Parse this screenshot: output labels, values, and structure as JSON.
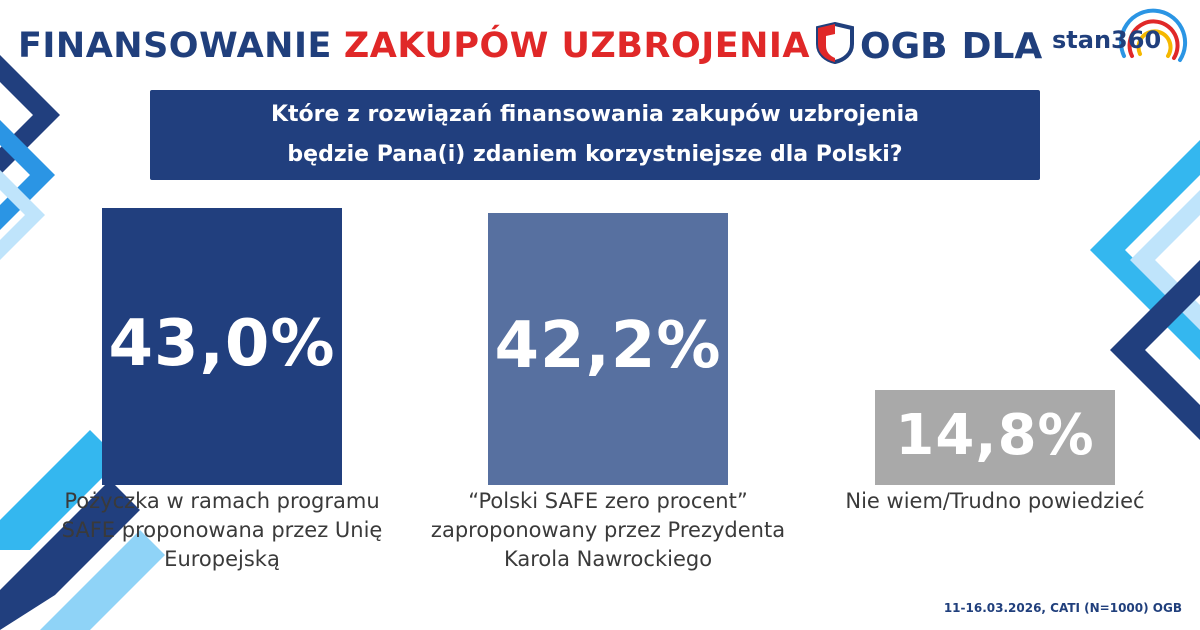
{
  "header": {
    "title_part1": "FINANSOWANIE",
    "title_part2": "ZAKUPÓW UZBROJENIA",
    "brand_ogb": "OGB",
    "brand_dla": "DLA",
    "brand_stan": "stan360"
  },
  "question": {
    "line1": "Które z rozwiązań finansowania zakupów uzbrojenia",
    "line2": "będzie Pana(i) zdaniem korzystniejsze dla Polski?"
  },
  "chart_data": {
    "type": "bar",
    "title": "Które z rozwiązań finansowania zakupów uzbrojenia będzie Pana(i) zdaniem korzystniejsze dla Polski?",
    "ylim": [
      0,
      45
    ],
    "categories": [
      "Pożyczka w ramach programu SAFE proponowana przez Unię Europejską",
      "“Polski SAFE zero procent” zaproponowany przez Prezydenta Karola Nawrockiego",
      "Nie wiem/Trudno powiedzieć"
    ],
    "category_lines": [
      [
        "Pożyczka w ramach programu",
        "SAFE proponowana przez Unię",
        "Europejską"
      ],
      [
        "“Polski SAFE zero procent”",
        "zaproponowany przez Prezydenta",
        "Karola Nawrockiego"
      ],
      [
        "Nie wiem/Trudno powiedzieć"
      ]
    ],
    "values": [
      43.0,
      42.2,
      14.8
    ],
    "value_labels": [
      "43,0%",
      "42,2%",
      "14,8%"
    ],
    "colors": [
      "#213f7e",
      "#5770a0",
      "#a9a9a9"
    ]
  },
  "footer": {
    "source": "11-16.03.2026, CATI (N=1000) OGB"
  }
}
